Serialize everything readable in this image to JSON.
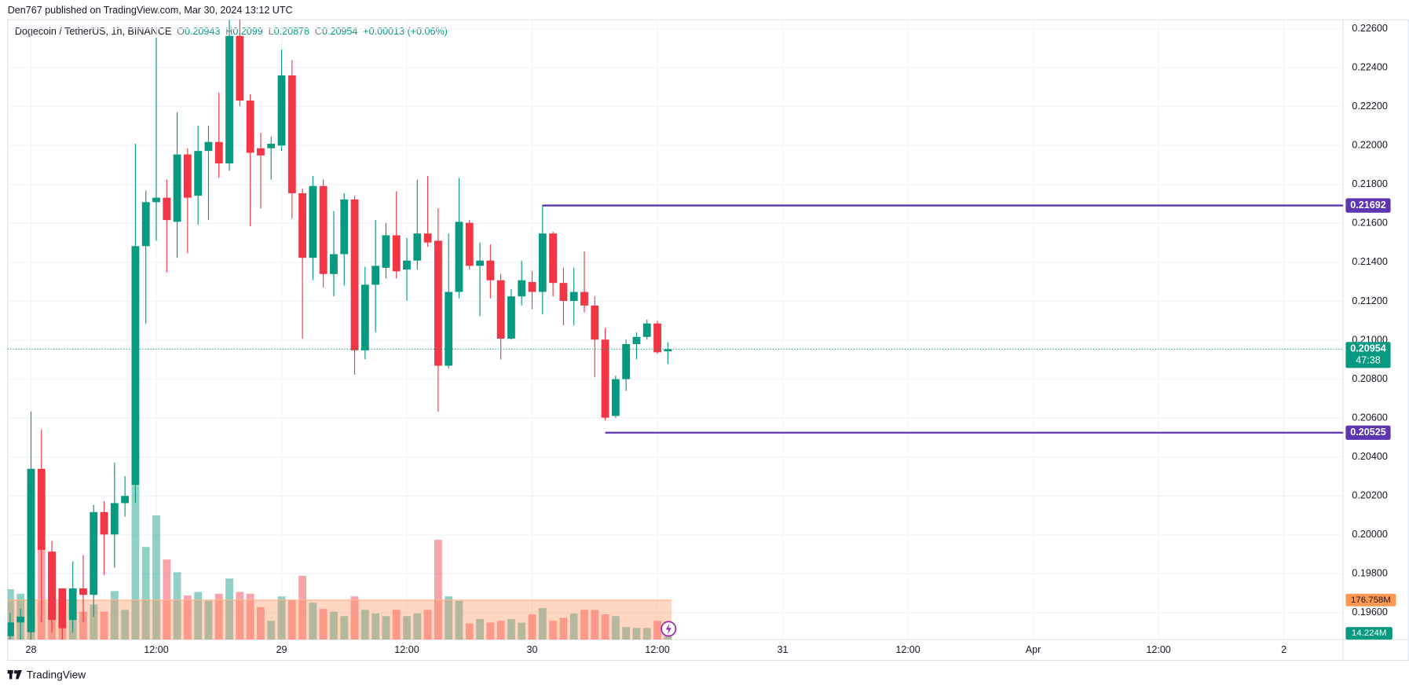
{
  "chart_data": {
    "type": "candlestick",
    "title": "Den767 published on TradingView.com, Mar 30, 2024 13:12 UTC",
    "subtitle": "Dogecoin / TetherUS, 1h, BINANCE",
    "legend": {
      "open_label": "O",
      "open": 0.20943,
      "high_label": "H",
      "high": 0.2099,
      "low_label": "L",
      "low": 0.20878,
      "close_label": "C",
      "close": 0.20954,
      "change": "+0.00013 (+0.06%)"
    },
    "x": [
      -2,
      -1,
      0,
      1,
      2,
      3,
      4,
      5,
      6,
      7,
      8,
      9,
      10,
      11,
      12,
      13,
      14,
      15,
      16,
      17,
      18,
      19,
      20,
      21,
      22,
      23,
      24,
      25,
      26,
      27,
      28,
      29,
      30,
      31,
      32,
      33,
      34,
      35,
      36,
      37,
      38,
      39,
      40,
      41,
      42,
      43,
      44,
      45,
      46,
      47,
      48,
      49,
      50,
      51,
      52,
      53,
      54,
      55,
      56,
      57,
      58,
      59,
      60,
      61
    ],
    "open": [
      0.1948,
      0.1955,
      0.195,
      0.20339,
      0.19914,
      0.19725,
      0.19563,
      0.19725,
      0.19692,
      0.20117,
      0.20002,
      0.20163,
      0.20255,
      0.21483,
      0.21709,
      0.21732,
      0.21608,
      0.21954,
      0.21742,
      0.21972,
      0.22018,
      0.21908,
      0.22563,
      0.22231,
      0.21986,
      0.21986,
      0.22,
      0.2236,
      0.21755,
      0.21423,
      0.21792,
      0.2134,
      0.21442,
      0.21723,
      0.20948,
      0.21285,
      0.21372,
      0.21539,
      0.21363,
      0.21409,
      0.21548,
      0.21511,
      0.20869,
      0.21248,
      0.21603,
      0.21382,
      0.21409,
      0.21308,
      0.21008,
      0.21225,
      0.21299,
      0.21248,
      0.21548,
      0.21294,
      0.21202,
      0.21248,
      0.21178,
      0.21003,
      0.20611,
      0.208,
      0.2098,
      0.21017,
      0.21086,
      0.20943
    ],
    "high": [
      0.196,
      0.1962,
      0.20634,
      0.20542,
      0.19969,
      0.19725,
      0.19863,
      0.19896,
      0.20154,
      0.20172,
      0.20371,
      0.20302,
      0.22009,
      0.21769,
      0.22554,
      0.21825,
      0.22171,
      0.21986,
      0.22102,
      0.22102,
      0.22272,
      0.22655,
      0.22646,
      0.22263,
      0.22065,
      0.22046,
      0.22494,
      0.22438,
      0.21779,
      0.21843,
      0.21825,
      0.21663,
      0.21755,
      0.21742,
      0.21377,
      0.21617,
      0.21603,
      0.21765,
      0.21525,
      0.21825,
      0.21843,
      0.21677,
      0.21548,
      0.21834,
      0.21617,
      0.21502,
      0.21492,
      0.2134,
      0.21262,
      0.21409,
      0.21354,
      0.21695,
      0.21557,
      0.21372,
      0.21372,
      0.21456,
      0.21225,
      0.21063,
      0.20818,
      0.21003,
      0.2104,
      0.21105,
      0.211,
      0.2099
    ],
    "low": [
      0.194,
      0.1945,
      0.1945,
      0.1955,
      0.195,
      0.1945,
      0.195,
      0.1955,
      0.1958,
      0.19794,
      0.19831,
      0.20094,
      0.20163,
      0.21086,
      0.21511,
      0.21348,
      0.21423,
      0.21446,
      0.21594,
      0.21617,
      0.21834,
      0.21871,
      0.22203,
      0.21585,
      0.21677,
      0.21825,
      0.21972,
      0.21626,
      0.21008,
      0.21308,
      0.21271,
      0.21225,
      0.2128,
      0.20823,
      0.20902,
      0.2104,
      0.21317,
      0.21317,
      0.21202,
      0.21363,
      0.21479,
      0.20634,
      0.20855,
      0.21215,
      0.21363,
      0.21123,
      0.21215,
      0.20902,
      0.21003,
      0.21178,
      0.2116,
      0.21132,
      0.21225,
      0.21077,
      0.21077,
      0.21142,
      0.20809,
      0.20588,
      0.20602,
      0.2074,
      0.20902,
      0.21003,
      0.20929,
      0.20878
    ],
    "close": [
      0.1955,
      0.1958,
      0.20339,
      0.19923,
      0.19563,
      0.1952,
      0.19725,
      0.19692,
      0.20117,
      0.20002,
      0.20163,
      0.202,
      0.21483,
      0.21709,
      0.21732,
      0.21617,
      0.21954,
      0.21732,
      0.21972,
      0.22018,
      0.21908,
      0.22563,
      0.22231,
      0.21963,
      0.21949,
      0.22009,
      0.2236,
      0.21755,
      0.21423,
      0.21792,
      0.2134,
      0.21442,
      0.21723,
      0.20948,
      0.21285,
      0.21382,
      0.21539,
      0.21354,
      0.21409,
      0.21548,
      0.21502,
      0.20869,
      0.21248,
      0.21608,
      0.21382,
      0.21409,
      0.21308,
      0.21008,
      0.21225,
      0.21308,
      0.21248,
      0.21548,
      0.21294,
      0.21202,
      0.21248,
      0.21178,
      0.21003,
      0.20602,
      0.208,
      0.2098,
      0.21017,
      0.21086,
      0.20938,
      0.20954
    ],
    "volume": [
      225,
      205,
      680,
      426,
      386,
      225,
      150,
      125,
      157,
      125,
      217,
      133,
      687,
      414,
      555,
      358,
      301,
      197,
      213,
      173,
      205,
      273,
      213,
      205,
      145,
      84,
      193,
      177,
      285,
      165,
      137,
      125,
      105,
      193,
      133,
      117,
      105,
      133,
      105,
      117,
      133,
      446,
      193,
      173,
      72,
      92,
      76,
      84,
      92,
      76,
      113,
      141,
      84,
      97,
      117,
      133,
      133,
      113,
      105,
      56,
      52,
      52,
      84,
      14.224
    ],
    "volume_last": {
      "value": 14.224,
      "label": "14.224M"
    },
    "volume_ma": {
      "value": 176.758,
      "label": "176.758M"
    },
    "volume_lim": [
      0,
      2770
    ],
    "up_color": "#089981",
    "down_color": "#f23645",
    "xlim": [
      -2.24,
      125.67
    ],
    "xticks": [
      {
        "value": 0,
        "label": "28"
      },
      {
        "value": 12,
        "label": "12:00"
      },
      {
        "value": 24,
        "label": "29"
      },
      {
        "value": 36,
        "label": "12:00"
      },
      {
        "value": 48,
        "label": "30"
      },
      {
        "value": 60,
        "label": "12:00"
      },
      {
        "value": 72,
        "label": "31"
      },
      {
        "value": 84,
        "label": "12:00"
      },
      {
        "value": 96,
        "label": "Apr"
      },
      {
        "value": 108,
        "label": "12:00"
      },
      {
        "value": 120,
        "label": "2"
      }
    ],
    "ylim": [
      0.19462,
      0.22646
    ],
    "yticks": [
      {
        "value": 0.196,
        "label": "0.19600"
      },
      {
        "value": 0.198,
        "label": "0.19800"
      },
      {
        "value": 0.2,
        "label": "0.20000"
      },
      {
        "value": 0.202,
        "label": "0.20200"
      },
      {
        "value": 0.204,
        "label": "0.20400"
      },
      {
        "value": 0.206,
        "label": "0.20600"
      },
      {
        "value": 0.208,
        "label": "0.20800"
      },
      {
        "value": 0.21,
        "label": "0.21000"
      },
      {
        "value": 0.212,
        "label": "0.21200"
      },
      {
        "value": 0.214,
        "label": "0.21400"
      },
      {
        "value": 0.216,
        "label": "0.21600"
      },
      {
        "value": 0.218,
        "label": "0.21800"
      },
      {
        "value": 0.22,
        "label": "0.22000"
      },
      {
        "value": 0.222,
        "label": "0.22200"
      },
      {
        "value": 0.224,
        "label": "0.22400"
      },
      {
        "value": 0.226,
        "label": "0.22600"
      }
    ],
    "grid": true,
    "levels": [
      {
        "value": 0.21692,
        "start": 49,
        "color": "#5e35b1"
      },
      {
        "value": 0.20525,
        "start": 55,
        "color": "#5e35b1"
      }
    ],
    "last_price": {
      "value": 0.20954,
      "countdown": "47:38"
    },
    "footer": "TradingView"
  }
}
